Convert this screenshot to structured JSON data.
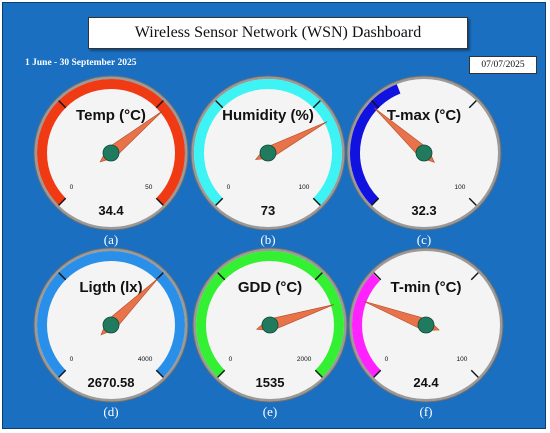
{
  "header": {
    "title": "Wireless Sensor Network (WSN) Dashboard",
    "date_range": "1 June - 30 September 2025",
    "current_date": "07/07/2025"
  },
  "colors": {
    "background": "#1a6fc0",
    "needle": "#e8734a",
    "hub": "#1f7a5e"
  },
  "gauges": [
    {
      "title": "Temp (°C)",
      "min": 0,
      "max": 50,
      "min_label": "0",
      "max_label": "50",
      "value": 34.4,
      "value_label": "34.4",
      "caption": "(a)",
      "color": "#f03a14",
      "fill_fraction": 1.0
    },
    {
      "title": "Humidity (%)",
      "min": 0,
      "max": 100,
      "min_label": "0",
      "max_label": "100",
      "value": 73,
      "value_label": "73",
      "caption": "(b)",
      "color": "#3ef3f3",
      "fill_fraction": 1.0
    },
    {
      "title": "T-max (°C)",
      "min": 0,
      "max": 100,
      "min_label": "",
      "max_label": "100",
      "value": 32.3,
      "value_label": "32.3",
      "caption": "(c)",
      "color": "#1212e0",
      "fill_fraction": 0.42
    },
    {
      "title": "Ligth (lx)",
      "min": 0,
      "max": 4000,
      "min_label": "0",
      "max_label": "4000",
      "value": 2670.58,
      "value_label": "2670.58",
      "caption": "(d)",
      "color": "#2a8fe8",
      "fill_fraction": 1.0
    },
    {
      "title": "GDD (°C)",
      "min": 0,
      "max": 2000,
      "min_label": "0",
      "max_label": "2000",
      "value": 1535,
      "value_label": "1535",
      "caption": "(e)",
      "color": "#33f033",
      "fill_fraction": 1.0
    },
    {
      "title": "T-min (°C)",
      "min": 0,
      "max": 100,
      "min_label": "0",
      "max_label": "100",
      "value": 24.4,
      "value_label": "24.4",
      "caption": "(f)",
      "color": "#ff22ff",
      "fill_fraction": 0.33
    }
  ]
}
